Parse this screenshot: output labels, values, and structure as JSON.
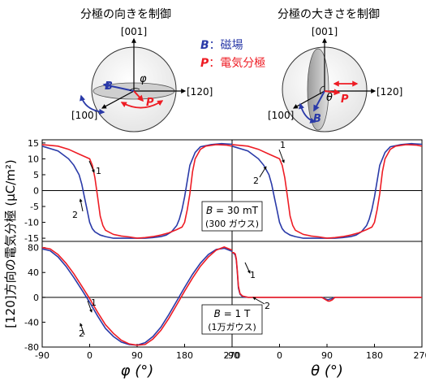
{
  "header": {
    "left_title": "分極の向きを制御",
    "right_title": "分極の大きさを制御"
  },
  "legend": {
    "b_symbol": "B",
    "b_text": "：磁場",
    "p_symbol": "P",
    "p_text": "：電気分極"
  },
  "diagram_labels": {
    "axis_001": "[001]",
    "axis_120": "[120]",
    "axis_100": "[100]",
    "phi": "φ",
    "theta": "θ",
    "b": "B",
    "p": "P"
  },
  "colors": {
    "blue": "#2a3aa8",
    "red": "#ee1c24",
    "black": "#000000"
  },
  "chart_data": [
    {
      "type": "line",
      "panel": "top-left",
      "xlim": [
        -90,
        270
      ],
      "ylim": [
        -16,
        16
      ],
      "yticks": [
        "15",
        "10",
        "5",
        "0",
        "-5",
        "-10",
        "-15"
      ],
      "series": [
        {
          "color": "blue",
          "x": [
            -90,
            -60,
            -40,
            -30,
            -20,
            -15,
            -10,
            -5,
            0,
            5,
            10,
            20,
            30,
            45,
            60,
            75,
            90,
            105,
            120,
            135,
            145,
            155,
            165,
            170,
            175,
            180,
            190,
            200,
            210,
            230,
            250,
            270
          ],
          "y": [
            14,
            12.5,
            10,
            8,
            5,
            2,
            -2,
            -6,
            -10,
            -12,
            -13,
            -14,
            -14.5,
            -15,
            -15,
            -15,
            -15,
            -15,
            -14.8,
            -14.5,
            -14,
            -13,
            -11,
            -9,
            -6,
            -2,
            8,
            12,
            13.8,
            14.5,
            14.8,
            14.6
          ]
        },
        {
          "color": "red",
          "x": [
            -90,
            -60,
            -40,
            -20,
            0,
            5,
            10,
            15,
            20,
            25,
            30,
            45,
            60,
            75,
            90,
            105,
            120,
            135,
            150,
            165,
            175,
            180,
            185,
            190,
            195,
            200,
            210,
            220,
            240,
            260,
            270
          ],
          "y": [
            14.5,
            14,
            13,
            11.5,
            10,
            8,
            4,
            -2,
            -8,
            -11,
            -12.5,
            -13.8,
            -14.3,
            -14.6,
            -15,
            -14.8,
            -14.5,
            -14,
            -13.3,
            -12.3,
            -11.5,
            -10,
            -6,
            -1,
            6,
            10,
            13,
            14,
            14.5,
            14.3,
            14
          ]
        }
      ],
      "annotations": [
        "1",
        "2"
      ]
    },
    {
      "type": "line",
      "panel": "top-right",
      "xlim": [
        -90,
        270
      ],
      "ylim": [
        -16,
        16
      ],
      "series": [
        {
          "color": "blue",
          "x": [
            -90,
            -60,
            -40,
            -30,
            -20,
            -15,
            -10,
            -5,
            0,
            5,
            10,
            20,
            30,
            45,
            60,
            75,
            90,
            105,
            120,
            135,
            145,
            155,
            165,
            170,
            175,
            180,
            190,
            200,
            210,
            230,
            250,
            270
          ],
          "y": [
            14,
            12.5,
            10,
            8,
            5,
            2,
            -2,
            -6,
            -10,
            -12,
            -13,
            -14,
            -14.5,
            -15,
            -15,
            -15,
            -15,
            -15,
            -14.8,
            -14.5,
            -14,
            -13,
            -11,
            -9,
            -6,
            -2,
            8,
            12,
            13.8,
            14.5,
            14.8,
            14.6
          ]
        },
        {
          "color": "red",
          "x": [
            -90,
            -60,
            -40,
            -20,
            0,
            5,
            10,
            15,
            20,
            25,
            30,
            45,
            60,
            75,
            90,
            105,
            120,
            135,
            150,
            165,
            175,
            180,
            185,
            190,
            195,
            200,
            210,
            220,
            240,
            260,
            270
          ],
          "y": [
            14.5,
            14,
            13,
            11.5,
            10,
            8,
            4,
            -2,
            -8,
            -11,
            -12.5,
            -13.8,
            -14.3,
            -14.6,
            -15,
            -14.8,
            -14.5,
            -14,
            -13.3,
            -12.3,
            -11.5,
            -10,
            -6,
            -1,
            6,
            10,
            13,
            14,
            14.5,
            14.3,
            14
          ]
        }
      ],
      "annotations": [
        "1",
        "2"
      ]
    },
    {
      "type": "line",
      "panel": "bottom-left",
      "xlim": [
        -90,
        270
      ],
      "ylim": [
        -80,
        90
      ],
      "yticks": [
        "80",
        "40",
        "0",
        "-40",
        "-80"
      ],
      "xticks": [
        "-90",
        "0",
        "90",
        "180",
        "270"
      ],
      "series": [
        {
          "color": "blue",
          "x": [
            -90,
            -75,
            -60,
            -45,
            -30,
            -15,
            0,
            15,
            30,
            45,
            60,
            75,
            90,
            105,
            120,
            135,
            150,
            165,
            180,
            195,
            210,
            225,
            240,
            255,
            270
          ],
          "y": [
            78,
            75,
            65,
            50,
            32,
            12,
            -8,
            -30,
            -50,
            -63,
            -72,
            -76,
            -77,
            -73,
            -63,
            -48,
            -28,
            -6,
            16,
            37,
            55,
            69,
            77,
            79,
            74
          ]
        },
        {
          "color": "red",
          "x": [
            -90,
            -75,
            -60,
            -45,
            -30,
            -15,
            0,
            15,
            30,
            45,
            60,
            75,
            90,
            105,
            120,
            135,
            150,
            165,
            180,
            195,
            210,
            225,
            240,
            255,
            270
          ],
          "y": [
            80,
            78,
            69,
            55,
            38,
            18,
            -2,
            -24,
            -44,
            -58,
            -69,
            -75,
            -77,
            -76,
            -67,
            -53,
            -34,
            -12,
            10,
            31,
            50,
            65,
            76,
            81,
            76
          ]
        }
      ],
      "annotations": [
        "1",
        "2"
      ]
    },
    {
      "type": "line",
      "panel": "bottom-right",
      "xlim": [
        -90,
        270
      ],
      "ylim": [
        -80,
        90
      ],
      "xticks": [
        "-90",
        "0",
        "90",
        "180",
        "270"
      ],
      "series": [
        {
          "color": "blue",
          "x": [
            -90,
            -87,
            -84,
            -82,
            -80,
            -78,
            -75,
            -70,
            -60,
            -40,
            0,
            80,
            88,
            92,
            95,
            100,
            105,
            110,
            200,
            270
          ],
          "y": [
            72,
            71,
            68,
            60,
            40,
            15,
            5,
            1,
            0,
            0,
            0,
            0,
            -3,
            -4,
            -3,
            -2,
            0,
            0,
            0,
            0
          ]
        },
        {
          "color": "red",
          "x": [
            -90,
            -87,
            -84,
            -82,
            -80,
            -78,
            -75,
            -70,
            -60,
            -40,
            0,
            80,
            88,
            92,
            95,
            100,
            105,
            110,
            200,
            270
          ],
          "y": [
            72,
            72,
            70,
            62,
            42,
            18,
            6,
            2,
            0,
            0,
            0,
            0,
            -4,
            -6,
            -6,
            -4,
            0,
            0,
            0,
            0
          ]
        }
      ],
      "annotations": [
        "1",
        "2"
      ]
    }
  ],
  "panel_labels": {
    "top_field_line1_sym": "B",
    "top_field_line1_rest": " = 30 mT",
    "top_field_line2": "(300 ガウス)",
    "bottom_field_line1_sym": "B",
    "bottom_field_line1_rest": " = 1 T",
    "bottom_field_line2": "(1万ガウス)"
  },
  "axis_labels": {
    "ylabel": "[120]方向の電気分極 (μC/m²)",
    "xlabel_left": "φ (°)",
    "xlabel_right": "θ (°)"
  }
}
